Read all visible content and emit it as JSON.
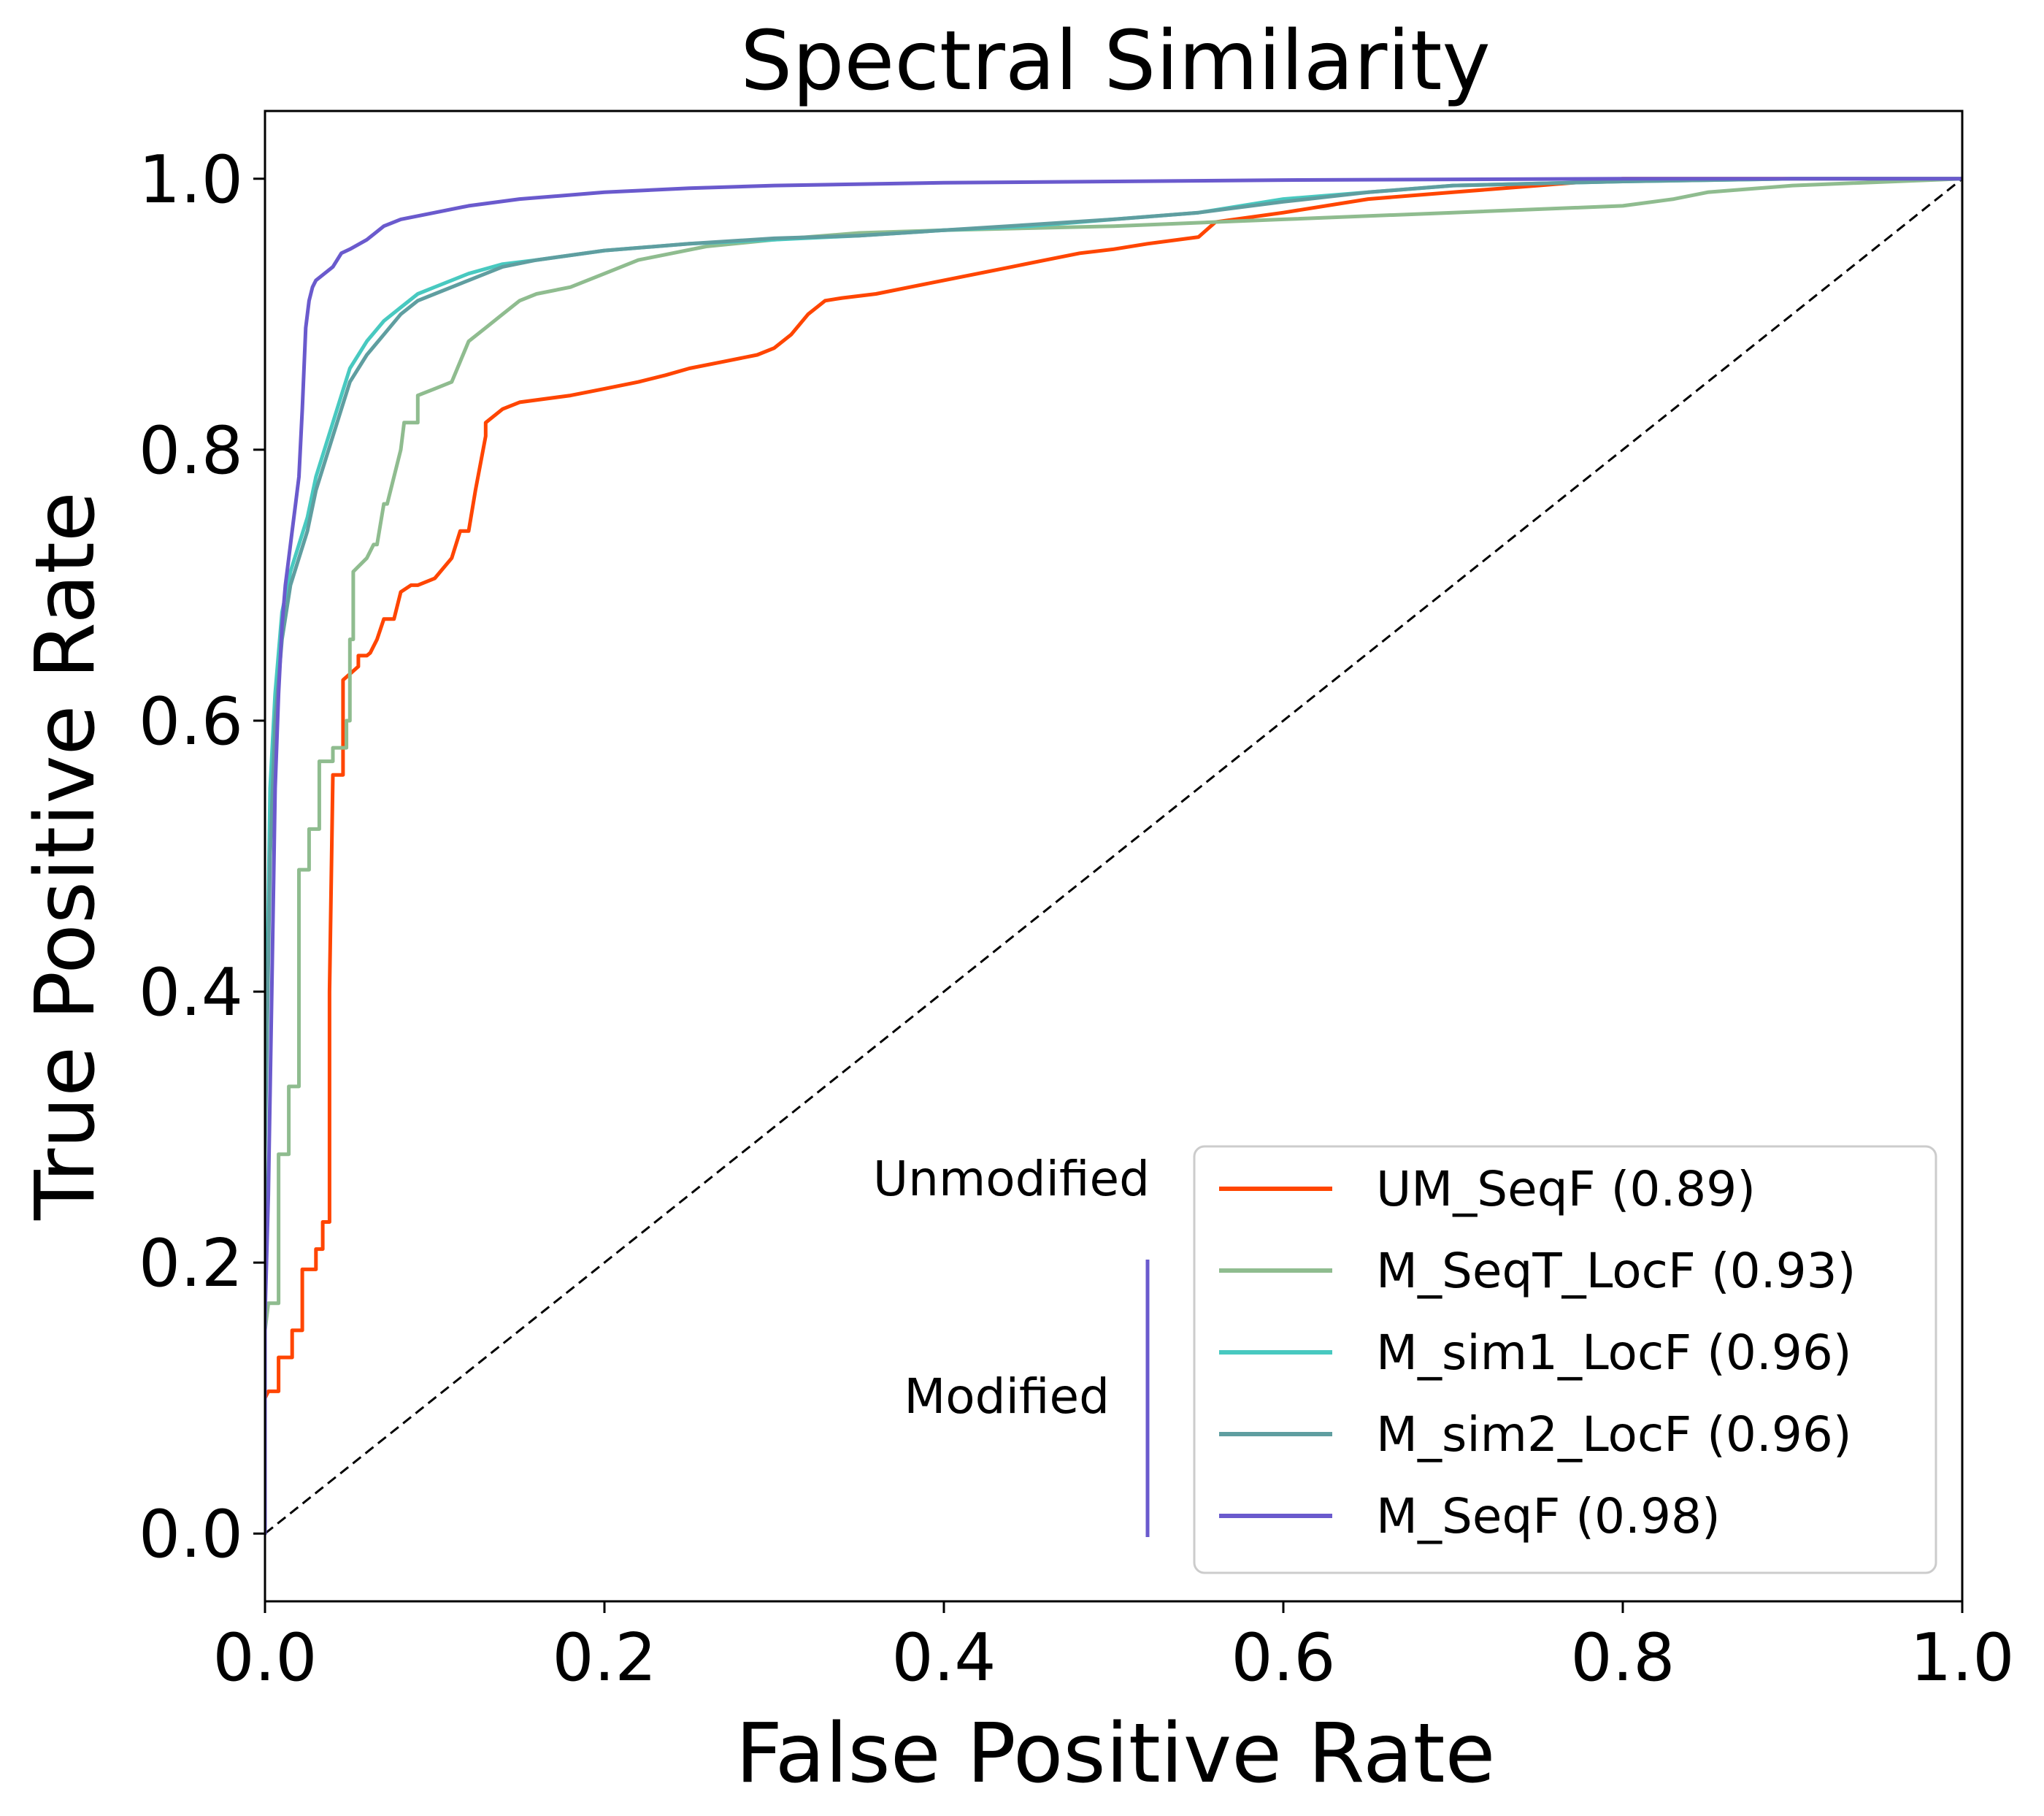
{
  "chart_data": {
    "type": "line",
    "title": "Spectral Similarity",
    "xlabel": "False Positive Rate",
    "ylabel": "True Positive Rate",
    "xlim": [
      0.0,
      1.0
    ],
    "ylim": [
      -0.05,
      1.05
    ],
    "xticks": [
      "0.0",
      "0.2",
      "0.4",
      "0.6",
      "0.8",
      "1.0"
    ],
    "yticks": [
      "0.0",
      "0.2",
      "0.4",
      "0.6",
      "0.8",
      "1.0"
    ],
    "grid": false,
    "legend_position": "lower-right",
    "group_labels": {
      "unmodified": "Unmodified",
      "modified": "Modified"
    },
    "group_bracket_color": "#6a5acd",
    "diagonal": {
      "x": [
        0,
        1
      ],
      "y": [
        0,
        1
      ],
      "style": "dashed",
      "color": "#000000"
    },
    "series": [
      {
        "name": "UM_SeqF (0.89)",
        "color": "#ff4500",
        "x": [
          0.0,
          0.0,
          0.002,
          0.008,
          0.008,
          0.016,
          0.016,
          0.022,
          0.022,
          0.03,
          0.03,
          0.034,
          0.034,
          0.038,
          0.038,
          0.04,
          0.04,
          0.046,
          0.046,
          0.055,
          0.055,
          0.06,
          0.062,
          0.066,
          0.07,
          0.076,
          0.08,
          0.086,
          0.09,
          0.1,
          0.11,
          0.115,
          0.12,
          0.124,
          0.13,
          0.13,
          0.14,
          0.15,
          0.18,
          0.2,
          0.22,
          0.236,
          0.25,
          0.27,
          0.29,
          0.3,
          0.31,
          0.32,
          0.33,
          0.34,
          0.36,
          0.38,
          0.4,
          0.42,
          0.44,
          0.46,
          0.48,
          0.5,
          0.52,
          0.55,
          0.56,
          0.6,
          0.65,
          0.7,
          0.75,
          0.8,
          1.0
        ],
        "y": [
          0.0,
          0.1,
          0.105,
          0.105,
          0.13,
          0.13,
          0.15,
          0.15,
          0.195,
          0.195,
          0.21,
          0.21,
          0.23,
          0.23,
          0.4,
          0.56,
          0.56,
          0.56,
          0.63,
          0.64,
          0.648,
          0.648,
          0.65,
          0.66,
          0.675,
          0.675,
          0.695,
          0.7,
          0.7,
          0.705,
          0.72,
          0.74,
          0.74,
          0.77,
          0.81,
          0.82,
          0.83,
          0.835,
          0.84,
          0.845,
          0.85,
          0.855,
          0.86,
          0.865,
          0.87,
          0.875,
          0.885,
          0.9,
          0.91,
          0.912,
          0.915,
          0.92,
          0.925,
          0.93,
          0.935,
          0.94,
          0.945,
          0.948,
          0.952,
          0.957,
          0.968,
          0.975,
          0.985,
          0.99,
          0.995,
          1.0,
          1.0
        ]
      },
      {
        "name": "M_SeqT_LocF (0.93)",
        "color": "#8fbc8f",
        "x": [
          0.0,
          0.0,
          0.002,
          0.008,
          0.008,
          0.014,
          0.014,
          0.02,
          0.02,
          0.026,
          0.026,
          0.032,
          0.032,
          0.04,
          0.04,
          0.048,
          0.048,
          0.05,
          0.05,
          0.052,
          0.052,
          0.06,
          0.064,
          0.066,
          0.07,
          0.072,
          0.08,
          0.082,
          0.09,
          0.09,
          0.1,
          0.11,
          0.12,
          0.13,
          0.14,
          0.15,
          0.16,
          0.18,
          0.2,
          0.22,
          0.24,
          0.26,
          0.3,
          0.35,
          0.4,
          0.5,
          0.6,
          0.7,
          0.8,
          0.83,
          0.85,
          0.9,
          1.0
        ],
        "y": [
          0.0,
          0.15,
          0.17,
          0.17,
          0.28,
          0.28,
          0.33,
          0.33,
          0.49,
          0.49,
          0.52,
          0.52,
          0.57,
          0.57,
          0.58,
          0.58,
          0.6,
          0.6,
          0.66,
          0.66,
          0.71,
          0.72,
          0.73,
          0.73,
          0.76,
          0.76,
          0.8,
          0.82,
          0.82,
          0.84,
          0.845,
          0.85,
          0.88,
          0.89,
          0.9,
          0.91,
          0.915,
          0.92,
          0.93,
          0.94,
          0.945,
          0.95,
          0.955,
          0.96,
          0.962,
          0.965,
          0.97,
          0.975,
          0.98,
          0.985,
          0.99,
          0.995,
          1.0
        ]
      },
      {
        "name": "M_sim1_LocF (0.96)",
        "color": "#48c9c0",
        "x": [
          0.0,
          0.0,
          0.003,
          0.006,
          0.01,
          0.015,
          0.02,
          0.025,
          0.03,
          0.035,
          0.04,
          0.045,
          0.05,
          0.055,
          0.06,
          0.07,
          0.08,
          0.09,
          0.1,
          0.12,
          0.14,
          0.16,
          0.2,
          0.25,
          0.3,
          0.35,
          0.4,
          0.45,
          0.5,
          0.55,
          0.6,
          0.65,
          0.7,
          0.8,
          0.9,
          1.0
        ],
        "y": [
          0.0,
          0.3,
          0.55,
          0.62,
          0.68,
          0.71,
          0.73,
          0.75,
          0.78,
          0.8,
          0.82,
          0.84,
          0.86,
          0.87,
          0.88,
          0.895,
          0.905,
          0.915,
          0.92,
          0.93,
          0.937,
          0.94,
          0.947,
          0.952,
          0.955,
          0.958,
          0.962,
          0.965,
          0.97,
          0.975,
          0.985,
          0.99,
          0.995,
          0.998,
          1.0,
          1.0
        ]
      },
      {
        "name": "M_sim2_LocF (0.96)",
        "color": "#5f9ea0",
        "x": [
          0.0,
          0.0,
          0.003,
          0.006,
          0.01,
          0.015,
          0.02,
          0.025,
          0.03,
          0.035,
          0.04,
          0.045,
          0.05,
          0.055,
          0.06,
          0.07,
          0.08,
          0.09,
          0.1,
          0.12,
          0.14,
          0.16,
          0.2,
          0.25,
          0.3,
          0.35,
          0.4,
          0.45,
          0.5,
          0.55,
          0.6,
          0.65,
          0.7,
          0.8,
          0.9,
          1.0
        ],
        "y": [
          0.0,
          0.28,
          0.5,
          0.6,
          0.66,
          0.7,
          0.72,
          0.74,
          0.77,
          0.79,
          0.81,
          0.83,
          0.85,
          0.86,
          0.87,
          0.885,
          0.9,
          0.91,
          0.915,
          0.925,
          0.935,
          0.94,
          0.947,
          0.952,
          0.956,
          0.958,
          0.962,
          0.966,
          0.97,
          0.975,
          0.983,
          0.99,
          0.995,
          0.998,
          1.0,
          1.0
        ]
      },
      {
        "name": "M_SeqF (0.98)",
        "color": "#6a5acd",
        "x": [
          0.0,
          0.0,
          0.002,
          0.004,
          0.006,
          0.008,
          0.01,
          0.012,
          0.014,
          0.016,
          0.018,
          0.02,
          0.022,
          0.024,
          0.026,
          0.028,
          0.03,
          0.035,
          0.04,
          0.045,
          0.05,
          0.06,
          0.07,
          0.08,
          0.1,
          0.12,
          0.15,
          0.2,
          0.25,
          0.3,
          0.4,
          0.5,
          0.6,
          0.8,
          1.0
        ],
        "y": [
          0.0,
          0.16,
          0.25,
          0.4,
          0.55,
          0.62,
          0.67,
          0.7,
          0.72,
          0.74,
          0.76,
          0.78,
          0.83,
          0.89,
          0.91,
          0.92,
          0.925,
          0.93,
          0.935,
          0.945,
          0.948,
          0.955,
          0.965,
          0.97,
          0.975,
          0.98,
          0.985,
          0.99,
          0.993,
          0.995,
          0.997,
          0.998,
          0.999,
          1.0,
          1.0
        ]
      }
    ]
  }
}
